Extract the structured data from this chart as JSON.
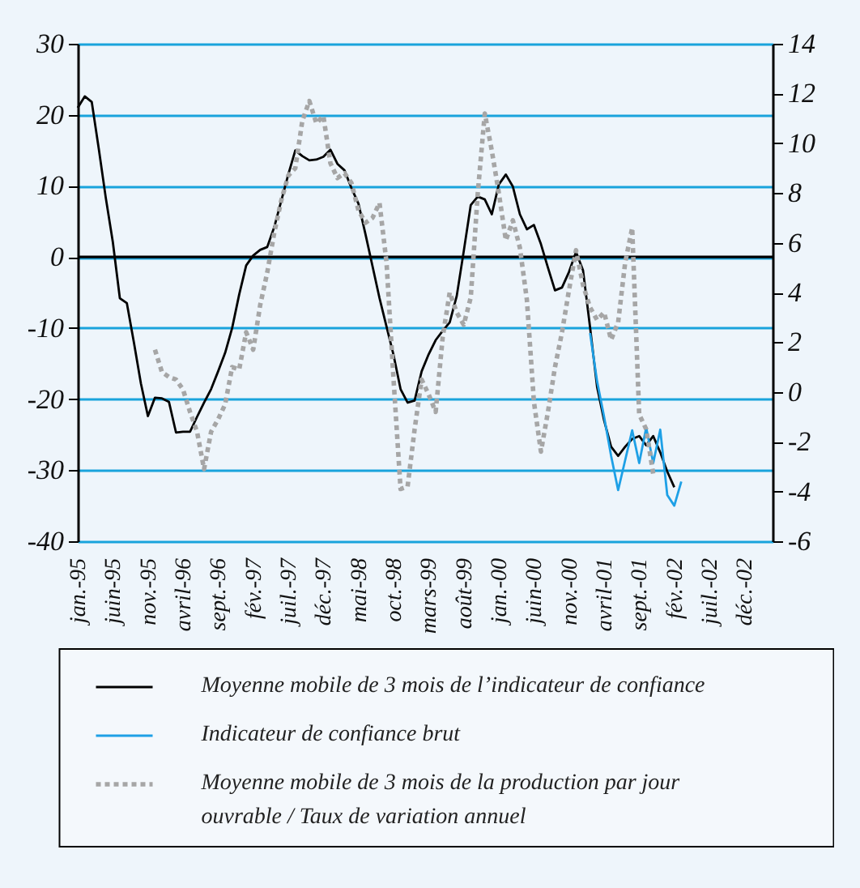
{
  "chart_data": {
    "type": "line",
    "categories": [
      "jan.-95",
      null,
      null,
      null,
      null,
      "juin-95",
      null,
      null,
      null,
      null,
      "nov.-95",
      null,
      null,
      null,
      null,
      "avril-96",
      null,
      null,
      null,
      null,
      "sept.-96",
      null,
      null,
      null,
      null,
      "fév.-97",
      null,
      null,
      null,
      null,
      "juil.-97",
      null,
      null,
      null,
      null,
      "déc.-97",
      null,
      null,
      null,
      null,
      "mai-98",
      null,
      null,
      null,
      null,
      "oct.-98",
      null,
      null,
      null,
      null,
      "mars-99",
      null,
      null,
      null,
      null,
      "août-99",
      null,
      null,
      null,
      null,
      "jan.-00",
      null,
      null,
      null,
      null,
      "juin-00",
      null,
      null,
      null,
      null,
      "nov.-00",
      null,
      null,
      null,
      null,
      "avril-01",
      null,
      null,
      null,
      null,
      "sept.-01",
      null,
      null,
      null,
      null,
      "fév.-02",
      null,
      null,
      null,
      null,
      "juil.-02",
      null,
      null,
      null,
      null,
      "déc.-02",
      null,
      null,
      null,
      null
    ],
    "series": [
      {
        "name": "Moyenne mobile de 3 mois de l’indicateur de confiance",
        "color": "#000000",
        "line_style": "solid",
        "values": [
          21.0,
          22.6,
          21.8,
          15.2,
          8.3,
          2.1,
          -5.8,
          -6.5,
          -12.0,
          -17.8,
          -22.4,
          -19.8,
          -19.9,
          -20.4,
          -24.7,
          -24.6,
          -24.6,
          -22.5,
          -20.5,
          -18.6,
          -16.1,
          -13.5,
          -10.0,
          -5.3,
          -1.2,
          0.2,
          1.0,
          1.4,
          4.2,
          7.9,
          11.6,
          15.0,
          14.2,
          13.6,
          13.7,
          14.1,
          15.1,
          13.1,
          12.2,
          9.7,
          7.5,
          3.2,
          -1.3,
          -5.8,
          -9.8,
          -13.8,
          -18.6,
          -20.5,
          -20.2,
          -16.1,
          -13.7,
          -11.7,
          -10.4,
          -9.2,
          -5.5,
          0.8,
          7.3,
          8.5,
          8.1,
          6.0,
          10.2,
          11.6,
          9.9,
          6.0,
          3.9,
          4.5,
          1.8,
          -1.5,
          -4.7,
          -4.3,
          -2.1,
          0.7,
          -1.9,
          -9.9,
          -18.3,
          -23.0,
          -26.7,
          -28.0,
          -26.7,
          -25.6,
          -25.2,
          -26.5,
          -25.2,
          -27.5,
          -30.2,
          -32.4,
          null,
          null,
          null,
          null,
          null,
          null,
          null,
          null,
          null,
          null,
          null,
          null,
          null,
          null
        ]
      },
      {
        "name": "Indicateur de confiance brut",
        "color": "#1ea0e6",
        "line_style": "solid",
        "values": [
          null,
          null,
          null,
          null,
          null,
          null,
          null,
          null,
          null,
          null,
          null,
          null,
          null,
          null,
          null,
          null,
          null,
          null,
          null,
          null,
          null,
          null,
          null,
          null,
          null,
          null,
          null,
          null,
          null,
          null,
          null,
          null,
          null,
          null,
          null,
          null,
          null,
          null,
          null,
          null,
          null,
          null,
          null,
          null,
          null,
          null,
          null,
          null,
          null,
          null,
          null,
          null,
          null,
          null,
          null,
          null,
          null,
          null,
          null,
          null,
          null,
          null,
          null,
          null,
          null,
          null,
          null,
          null,
          null,
          null,
          null,
          null,
          null,
          -10.7,
          -17.5,
          -22.5,
          -28.0,
          -32.8,
          -28.6,
          -24.4,
          -29.0,
          -24.0,
          -29.0,
          -24.3,
          -33.5,
          -35.0,
          -31.6,
          null,
          null,
          null,
          null,
          null,
          null,
          null,
          null,
          null,
          null,
          null,
          null,
          null
        ]
      },
      {
        "name": "Moyenne mobile de 3 mois de la production par jour ouvrable / Taux de variation annuel",
        "color": "#a6a6a6",
        "line_style": "dotted",
        "axis": "y2",
        "values": [
          null,
          null,
          null,
          null,
          null,
          null,
          null,
          null,
          null,
          null,
          null,
          1.7,
          0.8,
          0.6,
          0.5,
          0.1,
          -0.8,
          -1.6,
          -3.1,
          -1.6,
          -1.1,
          -0.5,
          1.0,
          0.9,
          2.4,
          1.7,
          3.5,
          4.8,
          6.4,
          7.7,
          8.7,
          9.0,
          10.9,
          11.7,
          10.8,
          11.1,
          9.2,
          8.6,
          8.8,
          8.4,
          7.3,
          6.8,
          7.0,
          7.6,
          5.2,
          0.5,
          -3.9,
          -3.8,
          -1.5,
          0.5,
          -0.1,
          -0.8,
          2.2,
          4.0,
          3.2,
          2.7,
          3.8,
          8.0,
          11.2,
          9.7,
          8.0,
          6.1,
          6.9,
          5.8,
          3.7,
          -0.4,
          -2.4,
          -0.8,
          1.0,
          2.4,
          4.1,
          5.7,
          4.3,
          3.4,
          2.9,
          3.2,
          2.1,
          2.8,
          5.2,
          6.6,
          -0.9,
          -1.5,
          -3.3,
          null,
          null,
          null,
          null,
          null,
          null,
          null,
          null,
          null,
          null,
          null,
          null,
          null,
          null,
          null,
          null,
          null
        ]
      }
    ],
    "ylim": [
      -40,
      30
    ],
    "yticks": [
      -40,
      -30,
      -20,
      -10,
      0,
      10,
      20,
      30
    ],
    "y2lim": [
      -6,
      14
    ],
    "y2ticks": [
      -6,
      -4,
      -2,
      0,
      2,
      4,
      6,
      8,
      10,
      12,
      14
    ],
    "ref_lines": [
      {
        "axis": "y",
        "value": 0,
        "color": "#000000"
      }
    ],
    "grid": "y",
    "legend": "bottom",
    "marker": "none"
  }
}
